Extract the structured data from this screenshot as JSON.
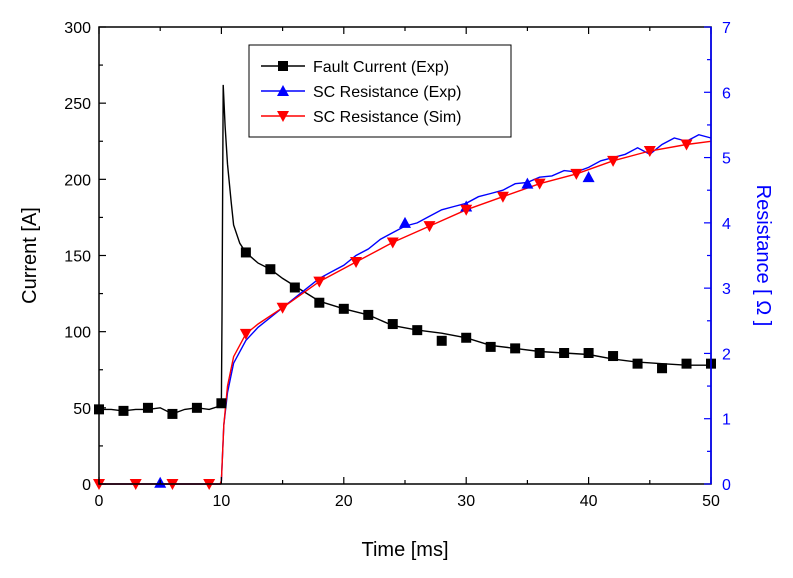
{
  "chart_data": {
    "type": "line",
    "xlabel": "Time [ms]",
    "ylabel": "Current [A]",
    "y2label": "Resistance [ Ω ]",
    "xlim": [
      0,
      50
    ],
    "ylim": [
      0,
      300
    ],
    "y2lim": [
      0,
      7
    ],
    "x_ticks": [
      0,
      10,
      20,
      30,
      40,
      50
    ],
    "y_ticks": [
      0,
      50,
      100,
      150,
      200,
      250,
      300
    ],
    "y2_ticks": [
      0,
      1,
      2,
      3,
      4,
      5,
      6,
      7
    ],
    "grid": false,
    "legend_position": "top-center",
    "legend": [
      {
        "label": "Fault Current (Exp)",
        "color": "#000000",
        "marker": "square"
      },
      {
        "label": "SC Resistance (Exp)",
        "color": "#0000ff",
        "marker": "triangle-up"
      },
      {
        "label": "SC Resistance (Sim)",
        "color": "#ff0000",
        "marker": "triangle-down"
      }
    ],
    "colors": {
      "axis_left": "#000000",
      "axis_right": "#0000ff"
    },
    "series": [
      {
        "name": "Fault Current (Exp)",
        "axis": "left",
        "color": "#000000",
        "marker": "square",
        "x": [
          0,
          1,
          2,
          3,
          4,
          5,
          6,
          7,
          8,
          9,
          9.8,
          9.9,
          10,
          10.05,
          10.15,
          10.3,
          10.5,
          10.8,
          11,
          11.5,
          12,
          13,
          14,
          15,
          16,
          18,
          20,
          22,
          24,
          26,
          28,
          30,
          32,
          34,
          36,
          38,
          40,
          42,
          44,
          46,
          48,
          50
        ],
        "y": [
          49,
          49,
          48,
          49,
          49,
          50,
          46,
          49,
          50,
          49,
          51,
          52,
          55,
          110,
          262,
          235,
          210,
          185,
          170,
          158,
          152,
          145,
          141,
          135,
          130,
          120,
          115,
          111,
          104,
          101,
          99,
          96,
          91,
          89,
          87,
          86,
          85,
          82,
          80,
          79,
          78,
          78
        ]
      },
      {
        "name": "SC Resistance (Exp)",
        "axis": "right",
        "color": "#0000ff",
        "marker": "triangle-up",
        "x": [
          0,
          5,
          9.9,
          10,
          10.2,
          10.5,
          11,
          12,
          13,
          14,
          15,
          16,
          17,
          18,
          19,
          20,
          21,
          22,
          23,
          24,
          25,
          26,
          27,
          28,
          29,
          30,
          31,
          32,
          33,
          34,
          35,
          36,
          37,
          38,
          39,
          40,
          41,
          42,
          43,
          44,
          45,
          46,
          47,
          48,
          49,
          50
        ],
        "y": [
          0,
          0,
          0,
          0.05,
          0.9,
          1.4,
          1.85,
          2.2,
          2.4,
          2.55,
          2.7,
          2.85,
          3.0,
          3.15,
          3.25,
          3.35,
          3.5,
          3.6,
          3.75,
          3.85,
          3.95,
          4.0,
          4.1,
          4.2,
          4.25,
          4.3,
          4.4,
          4.45,
          4.5,
          4.6,
          4.62,
          4.7,
          4.72,
          4.8,
          4.78,
          4.85,
          4.95,
          5.0,
          5.05,
          5.15,
          5.05,
          5.2,
          5.3,
          5.25,
          5.35,
          5.3
        ]
      },
      {
        "name": "SC Resistance (Sim)",
        "axis": "right",
        "color": "#ff0000",
        "marker": "triangle-down",
        "x": [
          0,
          3,
          6,
          9.9,
          10,
          10.2,
          10.5,
          11,
          12,
          13,
          15,
          18,
          21,
          24,
          27,
          30,
          33,
          36,
          39,
          42,
          45,
          48,
          50
        ],
        "y": [
          0,
          0,
          0,
          0,
          0.05,
          0.9,
          1.5,
          1.95,
          2.3,
          2.45,
          2.7,
          3.1,
          3.4,
          3.7,
          3.95,
          4.2,
          4.4,
          4.6,
          4.75,
          4.95,
          5.1,
          5.2,
          5.25
        ]
      }
    ],
    "markers": [
      {
        "series": "Fault Current (Exp)",
        "x": [
          0,
          2,
          4,
          6,
          8,
          10,
          12,
          14,
          16,
          18,
          20,
          22,
          24,
          26,
          28,
          30,
          32,
          34,
          36,
          38,
          40,
          42,
          44,
          46,
          48,
          50
        ],
        "y": [
          49,
          48,
          50,
          46,
          50,
          53,
          152,
          141,
          129,
          119,
          115,
          111,
          105,
          101,
          94,
          96,
          90,
          89,
          86,
          86,
          86,
          84,
          79,
          76,
          79,
          79
        ]
      },
      {
        "series": "SC Resistance (Exp)",
        "x": [
          5,
          25,
          30,
          35,
          40
        ],
        "y": [
          0.02,
          4.0,
          4.25,
          4.6,
          4.7
        ]
      },
      {
        "series": "SC Resistance (Sim)",
        "x": [
          0,
          3,
          6,
          9,
          12,
          15,
          18,
          21,
          24,
          27,
          30,
          33,
          36,
          39,
          42,
          45,
          48
        ],
        "y": [
          0,
          0,
          0,
          0,
          2.3,
          2.7,
          3.1,
          3.4,
          3.7,
          3.95,
          4.2,
          4.4,
          4.6,
          4.75,
          4.95,
          5.1,
          5.2
        ]
      }
    ]
  }
}
